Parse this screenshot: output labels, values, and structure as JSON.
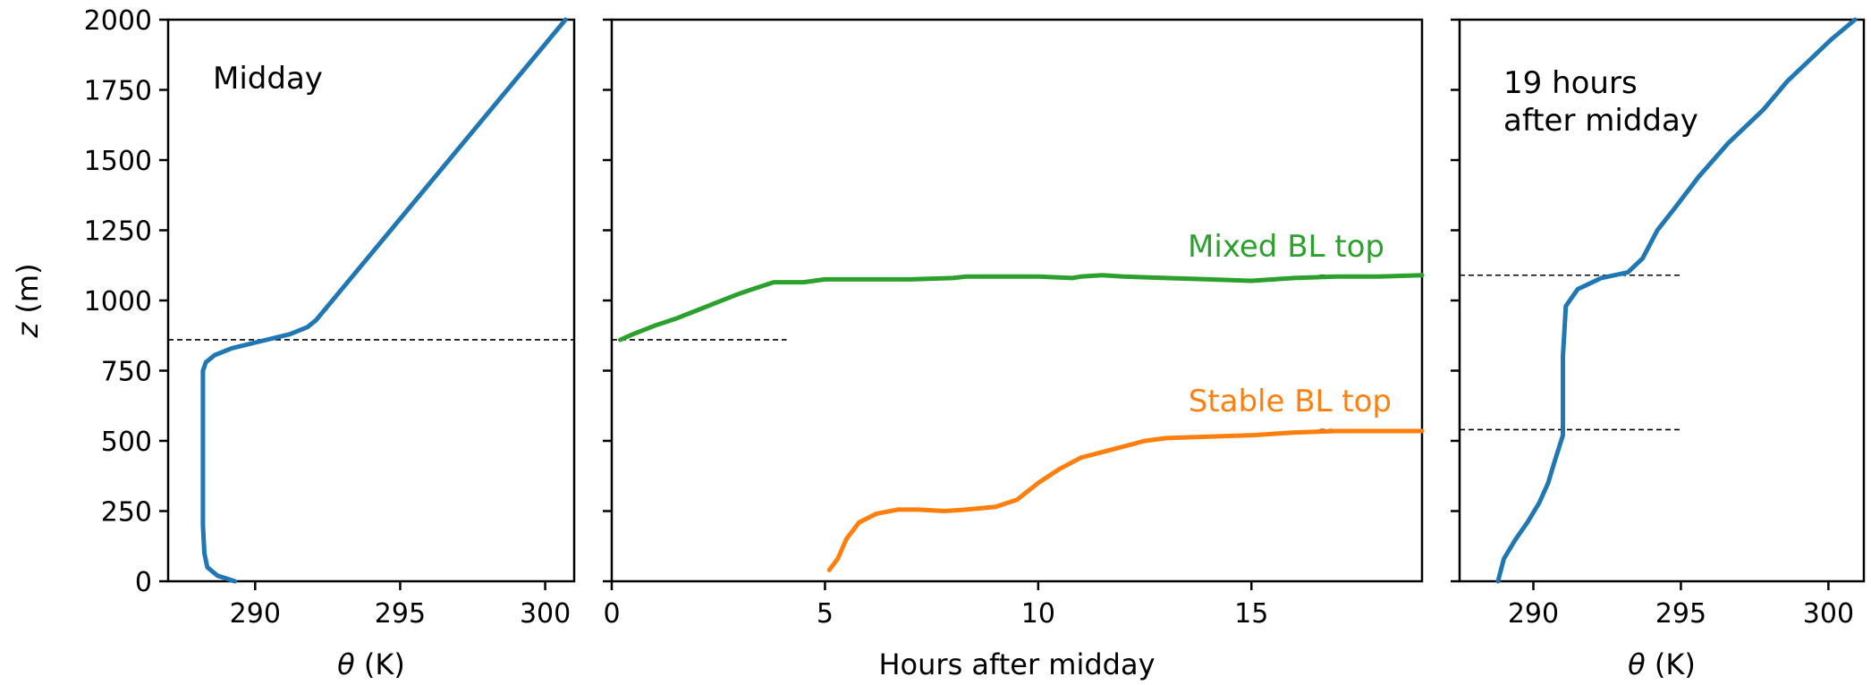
{
  "chart_data": [
    {
      "type": "line",
      "annotation": "Midday",
      "xlabel_symbol": "θ",
      "xlabel_unit": " (K)",
      "ylabel_symbol": "z",
      "ylabel_unit": " (m)",
      "xlim": [
        287,
        301
      ],
      "ylim": [
        0,
        2000
      ],
      "xticks": [
        290,
        295,
        300
      ],
      "yticks": [
        0,
        250,
        500,
        750,
        1000,
        1250,
        1500,
        1750,
        2000
      ],
      "series": [
        {
          "color": "#1f77b4",
          "x": [
            289.3,
            288.7,
            288.35,
            288.25,
            288.2,
            288.2,
            288.2,
            288.2,
            288.2,
            288.3,
            288.6,
            289.2,
            290.2,
            291.2,
            291.8,
            292.1,
            300.7
          ],
          "y": [
            0,
            20,
            50,
            100,
            200,
            400,
            600,
            700,
            750,
            780,
            805,
            830,
            855,
            880,
            905,
            930,
            2000
          ]
        }
      ],
      "hlines": [
        860
      ]
    },
    {
      "type": "line",
      "xlabel": "Hours after midday",
      "xlim": [
        0,
        19
      ],
      "ylim": [
        0,
        2000
      ],
      "xticks": [
        0,
        5,
        10,
        15
      ],
      "series": [
        {
          "name": "Mixed BL top",
          "color": "#2ca02c",
          "x": [
            0.2,
            0.5,
            1,
            1.5,
            2,
            2.5,
            3,
            3.3,
            3.8,
            4.5,
            5,
            6,
            7,
            8,
            8.3,
            8.6,
            9,
            10,
            10.8,
            11,
            11.5,
            12,
            13,
            14,
            15,
            16,
            17,
            18,
            19
          ],
          "y": [
            860,
            880,
            910,
            935,
            965,
            995,
            1025,
            1040,
            1065,
            1065,
            1075,
            1075,
            1075,
            1080,
            1085,
            1085,
            1085,
            1085,
            1080,
            1085,
            1090,
            1085,
            1080,
            1075,
            1070,
            1080,
            1085,
            1085,
            1090
          ]
        },
        {
          "name": "Stable BL top",
          "color": "#ff7f0e",
          "x": [
            5.1,
            5.3,
            5.5,
            5.8,
            6.2,
            6.7,
            7.2,
            7.8,
            8.3,
            9,
            9.5,
            10,
            10.5,
            11,
            11.5,
            12,
            12.5,
            13,
            14,
            15,
            16,
            17,
            18,
            19
          ],
          "y": [
            40,
            80,
            150,
            210,
            240,
            255,
            255,
            250,
            255,
            265,
            290,
            350,
            400,
            440,
            460,
            480,
            500,
            510,
            515,
            520,
            530,
            535,
            535,
            535
          ]
        }
      ],
      "hline_segments": [
        {
          "y": 860,
          "x0": 0,
          "x1": 4.1
        },
        {
          "y": 1090,
          "x0": 16.6,
          "x1": 19
        },
        {
          "y": 540,
          "x0": 16.6,
          "x1": 19
        }
      ]
    },
    {
      "type": "line",
      "annotation_lines": [
        "19 hours",
        "after midday"
      ],
      "xlabel_symbol": "θ",
      "xlabel_unit": " (K)",
      "xlim": [
        287.5,
        301.2
      ],
      "ylim": [
        0,
        2000
      ],
      "xticks": [
        290,
        295,
        300
      ],
      "series": [
        {
          "color": "#1f77b4",
          "x": [
            288.8,
            289,
            289.4,
            289.8,
            290.2,
            290.5,
            290.7,
            291,
            291,
            291,
            291.1,
            291.5,
            292.3,
            293.2,
            293.7,
            294.2,
            294.8,
            295.6,
            296.6,
            297.8,
            298.6,
            299.4,
            300.1,
            300.9
          ],
          "y": [
            0,
            80,
            150,
            210,
            280,
            350,
            420,
            520,
            600,
            800,
            980,
            1040,
            1080,
            1100,
            1150,
            1250,
            1330,
            1440,
            1560,
            1680,
            1780,
            1860,
            1930,
            2000
          ]
        }
      ],
      "hlines": [
        1090,
        540
      ],
      "hline_xrange": [
        287.5,
        295
      ]
    }
  ]
}
